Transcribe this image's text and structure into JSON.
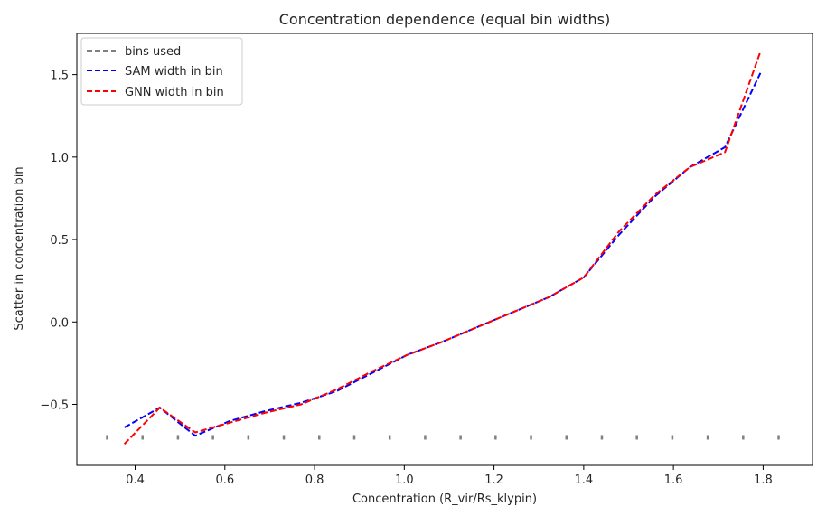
{
  "chart_data": {
    "type": "line",
    "title": "Concentration dependence (equal bin widths)",
    "xlabel": "Concentration (R_vir/Rs_klypin)",
    "ylabel": "Scatter in concentration bin",
    "xlim": [
      0.27,
      1.91
    ],
    "ylim": [
      -0.87,
      1.75
    ],
    "x_ticks": [
      0.4,
      0.6,
      0.8,
      1.0,
      1.2,
      1.4,
      1.6,
      1.8
    ],
    "x_tick_labels": [
      "0.4",
      "0.6",
      "0.8",
      "1.0",
      "1.2",
      "1.4",
      "1.6",
      "1.8"
    ],
    "y_ticks": [
      -0.5,
      0.0,
      0.5,
      1.0,
      1.5
    ],
    "y_tick_labels": [
      "−0.5",
      "0.0",
      "0.5",
      "1.0",
      "1.5"
    ],
    "legend_position": "top-left",
    "grid": false,
    "series": [
      {
        "name": "bins used",
        "color": "#808080",
        "style": "dashed-markers",
        "x": [
          0.337,
          0.416,
          0.495,
          0.573,
          0.652,
          0.731,
          0.81,
          0.888,
          0.967,
          1.046,
          1.125,
          1.203,
          1.282,
          1.361,
          1.44,
          1.518,
          1.597,
          1.676,
          1.755,
          1.834
        ],
        "y": [
          -0.7,
          -0.7,
          -0.7,
          -0.7,
          -0.7,
          -0.7,
          -0.7,
          -0.7,
          -0.7,
          -0.7,
          -0.7,
          -0.7,
          -0.7,
          -0.7,
          -0.7,
          -0.7,
          -0.7,
          -0.7,
          -0.7,
          -0.7
        ]
      },
      {
        "name": "SAM width in bin",
        "color": "#0000ff",
        "style": "dashed",
        "x": [
          0.376,
          0.455,
          0.534,
          0.612,
          0.691,
          0.77,
          0.849,
          0.928,
          1.006,
          1.085,
          1.164,
          1.243,
          1.322,
          1.4,
          1.479,
          1.558,
          1.637,
          1.715,
          1.794
        ],
        "y": [
          -0.64,
          -0.52,
          -0.69,
          -0.6,
          -0.54,
          -0.49,
          -0.42,
          -0.31,
          -0.2,
          -0.12,
          -0.03,
          0.06,
          0.15,
          0.27,
          0.53,
          0.76,
          0.94,
          1.06,
          1.51
        ]
      },
      {
        "name": "GNN width in bin",
        "color": "#ff0000",
        "style": "dashed",
        "x": [
          0.376,
          0.455,
          0.534,
          0.612,
          0.691,
          0.77,
          0.849,
          0.928,
          1.006,
          1.085,
          1.164,
          1.243,
          1.322,
          1.4,
          1.479,
          1.558,
          1.637,
          1.715,
          1.794
        ],
        "y": [
          -0.74,
          -0.52,
          -0.67,
          -0.61,
          -0.55,
          -0.5,
          -0.41,
          -0.3,
          -0.2,
          -0.12,
          -0.03,
          0.06,
          0.15,
          0.27,
          0.55,
          0.77,
          0.94,
          1.03,
          1.64
        ]
      }
    ]
  }
}
